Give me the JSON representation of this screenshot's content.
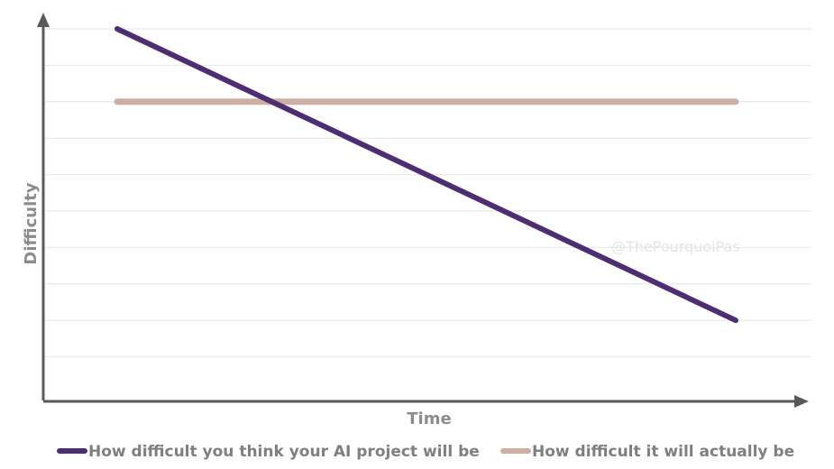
{
  "chart_data": {
    "type": "line",
    "xlabel": "Time",
    "ylabel": "Difficulty",
    "x": [
      0,
      1
    ],
    "xlim": [
      0,
      1
    ],
    "ylim": [
      0,
      10
    ],
    "grid": true,
    "legend_position": "bottom",
    "series": [
      {
        "name": "How difficult you think your AI project will be",
        "color": "#4e2e72",
        "values": [
          10,
          2
        ]
      },
      {
        "name": "How difficult it will actually be",
        "color": "#cdafa3",
        "values": [
          8,
          8
        ]
      }
    ]
  },
  "watermark": "@ThePourquoiPas",
  "axis_color": "#595959",
  "grid_color": "#e6e6e6"
}
